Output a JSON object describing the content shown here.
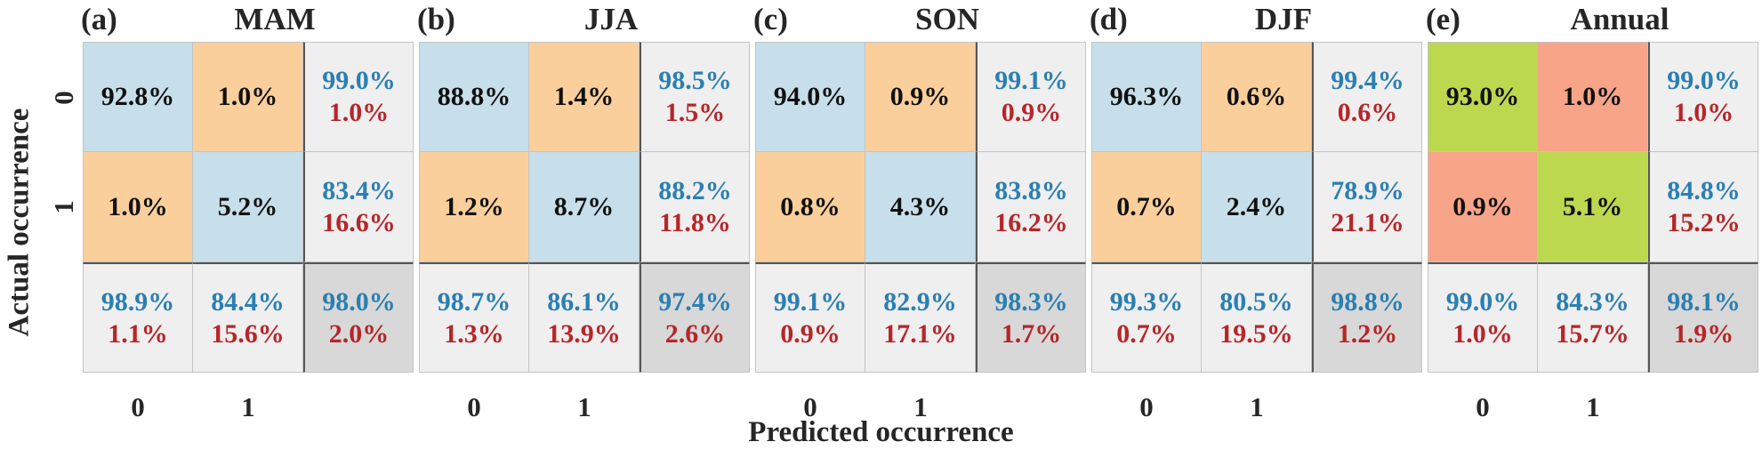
{
  "figure": {
    "xlabel": "Predicted occurrence",
    "ylabel": "Actual occurrence",
    "y_ticks": [
      "0",
      "1"
    ],
    "x_ticks": [
      "0",
      "1"
    ]
  },
  "colors": {
    "correct": "#c6dfea",
    "incorrect": "#fbcf9c",
    "annual_correct": "#bcd84f",
    "annual_incorrect": "#f7a488",
    "summary": "#efefef",
    "overall": "#d8d8d8",
    "blue_text": "#2b7fb1",
    "red_text": "#b6262a"
  },
  "chart_data": [
    {
      "type": "heatmap",
      "panel_label": "(a)",
      "title": "MAM",
      "matrix": [
        [
          "92.8%",
          "1.0%"
        ],
        [
          "1.0%",
          "5.2%"
        ]
      ],
      "row_summary": [
        [
          "99.0%",
          "1.0%"
        ],
        [
          "83.4%",
          "16.6%"
        ]
      ],
      "col_summary": [
        [
          "98.9%",
          "1.1%"
        ],
        [
          "84.4%",
          "15.6%"
        ]
      ],
      "overall": [
        "98.0%",
        "2.0%"
      ]
    },
    {
      "type": "heatmap",
      "panel_label": "(b)",
      "title": "JJA",
      "matrix": [
        [
          "88.8%",
          "1.4%"
        ],
        [
          "1.2%",
          "8.7%"
        ]
      ],
      "row_summary": [
        [
          "98.5%",
          "1.5%"
        ],
        [
          "88.2%",
          "11.8%"
        ]
      ],
      "col_summary": [
        [
          "98.7%",
          "1.3%"
        ],
        [
          "86.1%",
          "13.9%"
        ]
      ],
      "overall": [
        "97.4%",
        "2.6%"
      ]
    },
    {
      "type": "heatmap",
      "panel_label": "(c)",
      "title": "SON",
      "matrix": [
        [
          "94.0%",
          "0.9%"
        ],
        [
          "0.8%",
          "4.3%"
        ]
      ],
      "row_summary": [
        [
          "99.1%",
          "0.9%"
        ],
        [
          "83.8%",
          "16.2%"
        ]
      ],
      "col_summary": [
        [
          "99.1%",
          "0.9%"
        ],
        [
          "82.9%",
          "17.1%"
        ]
      ],
      "overall": [
        "98.3%",
        "1.7%"
      ]
    },
    {
      "type": "heatmap",
      "panel_label": "(d)",
      "title": "DJF",
      "matrix": [
        [
          "96.3%",
          "0.6%"
        ],
        [
          "0.7%",
          "2.4%"
        ]
      ],
      "row_summary": [
        [
          "99.4%",
          "0.6%"
        ],
        [
          "78.9%",
          "21.1%"
        ]
      ],
      "col_summary": [
        [
          "99.3%",
          "0.7%"
        ],
        [
          "80.5%",
          "19.5%"
        ]
      ],
      "overall": [
        "98.8%",
        "1.2%"
      ]
    },
    {
      "type": "heatmap",
      "panel_label": "(e)",
      "title": "Annual",
      "matrix": [
        [
          "93.0%",
          "1.0%"
        ],
        [
          "0.9%",
          "5.1%"
        ]
      ],
      "row_summary": [
        [
          "99.0%",
          "1.0%"
        ],
        [
          "84.8%",
          "15.2%"
        ]
      ],
      "col_summary": [
        [
          "99.0%",
          "1.0%"
        ],
        [
          "84.3%",
          "15.7%"
        ]
      ],
      "overall": [
        "98.1%",
        "1.9%"
      ]
    }
  ]
}
